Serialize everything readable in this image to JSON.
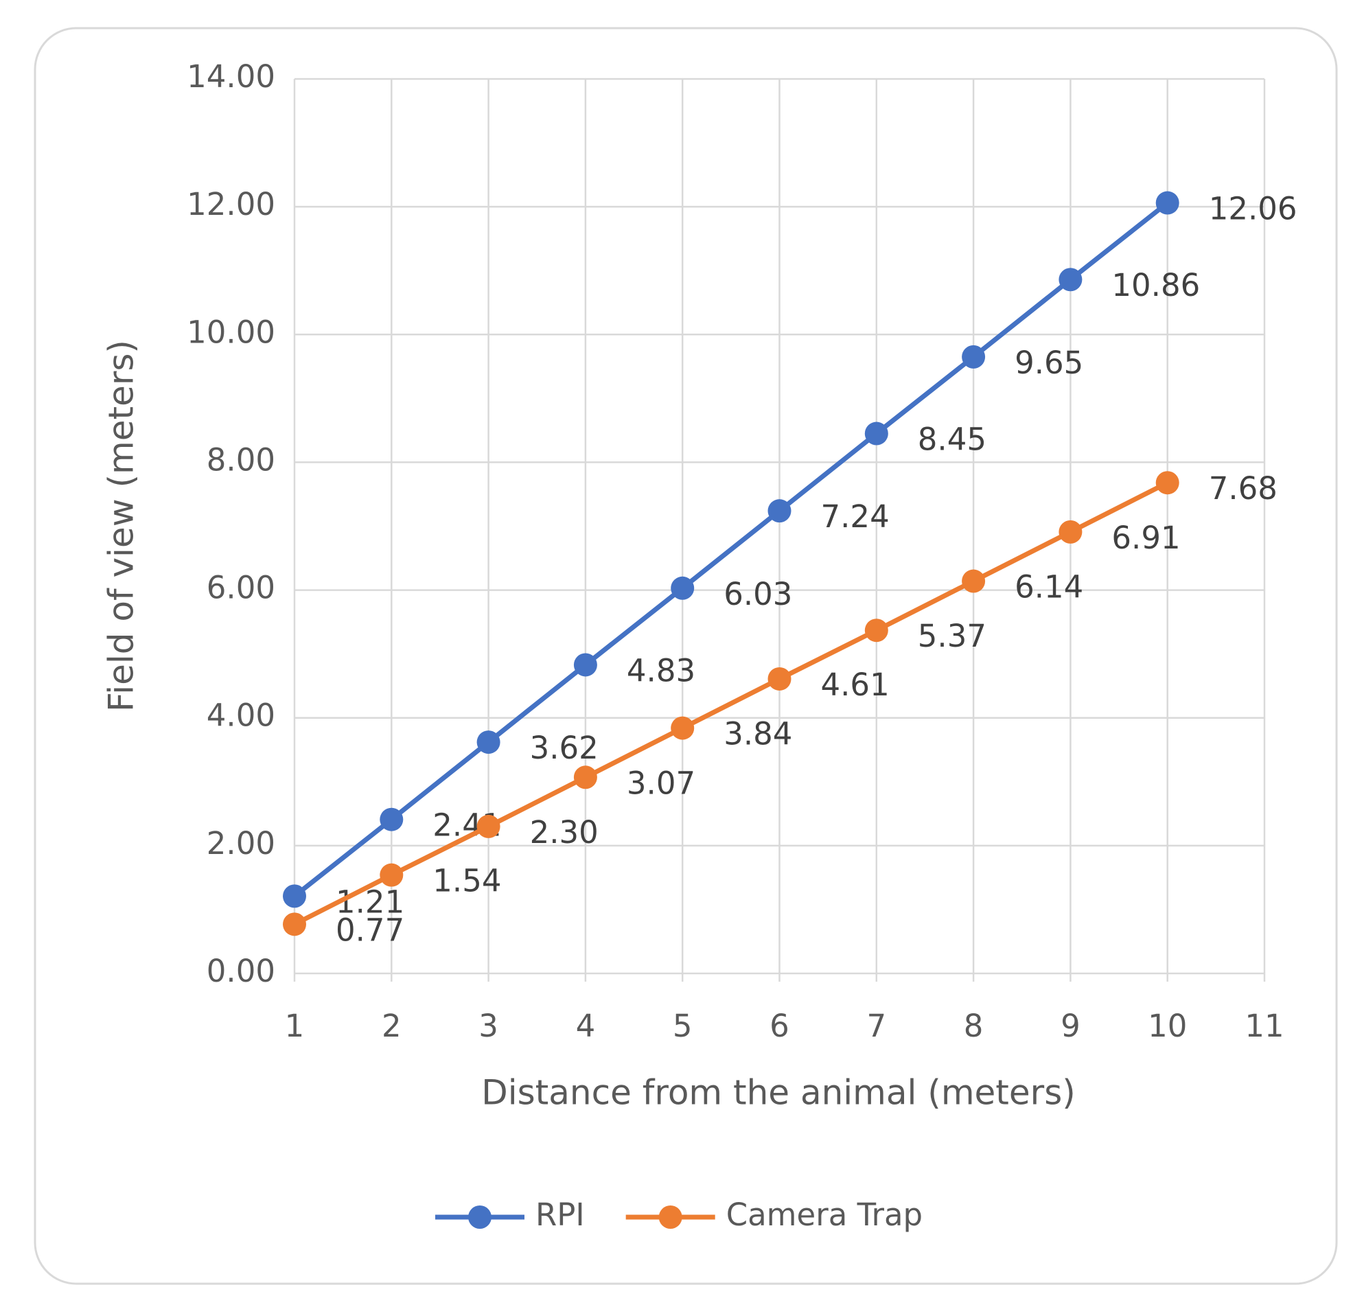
{
  "chart_data": {
    "type": "line",
    "x_label": "Distance from the animal (meters)",
    "y_label": "Field of view (meters)",
    "x": [
      1,
      2,
      3,
      4,
      5,
      6,
      7,
      8,
      9,
      10
    ],
    "xlim": [
      1,
      11
    ],
    "xticks": [
      1,
      2,
      3,
      4,
      5,
      6,
      7,
      8,
      9,
      10,
      11
    ],
    "ylim": [
      0,
      14
    ],
    "yticks": [
      {
        "value": 0,
        "label": "0.00"
      },
      {
        "value": 2,
        "label": "2.00"
      },
      {
        "value": 4,
        "label": "4.00"
      },
      {
        "value": 6,
        "label": "6.00"
      },
      {
        "value": 8,
        "label": "8.00"
      },
      {
        "value": 10,
        "label": "10.00"
      },
      {
        "value": 12,
        "label": "12.00"
      },
      {
        "value": 14,
        "label": "14.00"
      }
    ],
    "grid": true,
    "legend": "bottom",
    "series": [
      {
        "name": "RPI",
        "color": "#4472c4",
        "values": [
          1.21,
          2.41,
          3.62,
          4.83,
          6.03,
          7.24,
          8.45,
          9.65,
          10.86,
          12.06
        ],
        "value_labels": [
          "1.21",
          "2.41",
          "3.62",
          "4.83",
          "6.03",
          "7.24",
          "8.45",
          "9.65",
          "10.86",
          "12.06"
        ]
      },
      {
        "name": "Camera Trap",
        "color": "#ed7d31",
        "values": [
          0.77,
          1.54,
          2.3,
          3.07,
          3.84,
          4.61,
          5.37,
          6.14,
          6.91,
          7.68
        ],
        "value_labels": [
          "0.77",
          "1.54",
          "2.30",
          "3.07",
          "3.84",
          "4.61",
          "5.37",
          "6.14",
          "6.91",
          "7.68"
        ]
      }
    ]
  }
}
